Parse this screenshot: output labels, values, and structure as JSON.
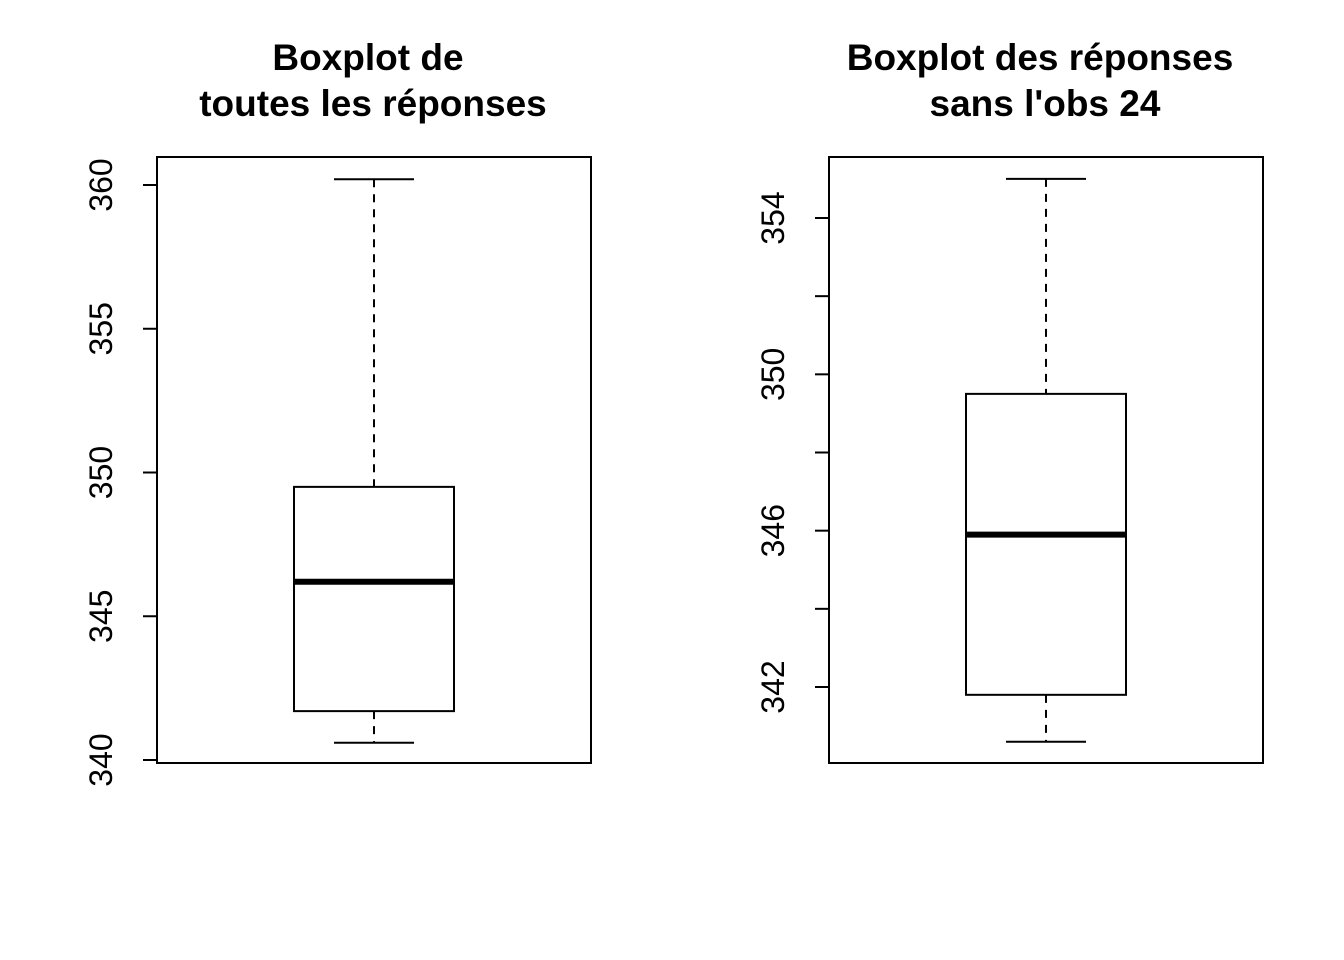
{
  "chart_data": [
    {
      "type": "boxplot",
      "title_lines": [
        "Boxplot de",
        "toutes les réponses"
      ],
      "xlabel": "",
      "ylabel": "",
      "ylim": [
        340,
        361
      ],
      "yticks": [
        340,
        345,
        350,
        355,
        360
      ],
      "ytick_labels": [
        "340",
        "345",
        "350",
        "355",
        "360"
      ],
      "grid": false,
      "box": {
        "min": 340.6,
        "q1": 341.7,
        "median": 346.2,
        "q3": 349.5,
        "max": 360.2
      },
      "colors": {
        "stroke": "#000000",
        "fill": "#ffffff"
      }
    },
    {
      "type": "boxplot",
      "title_lines": [
        "Boxplot des réponses",
        "sans l'obs 24"
      ],
      "xlabel": "",
      "ylabel": "",
      "ylim": [
        340,
        356
      ],
      "yticks": [
        342,
        344,
        346,
        348,
        350,
        352,
        354
      ],
      "ytick_labels": [
        "342",
        "",
        "346",
        "",
        "350",
        "",
        "354"
      ],
      "grid": false,
      "box": {
        "min": 340.6,
        "q1": 341.8,
        "median": 345.9,
        "q3": 349.5,
        "max": 355.0
      },
      "colors": {
        "stroke": "#000000",
        "fill": "#ffffff"
      }
    }
  ]
}
